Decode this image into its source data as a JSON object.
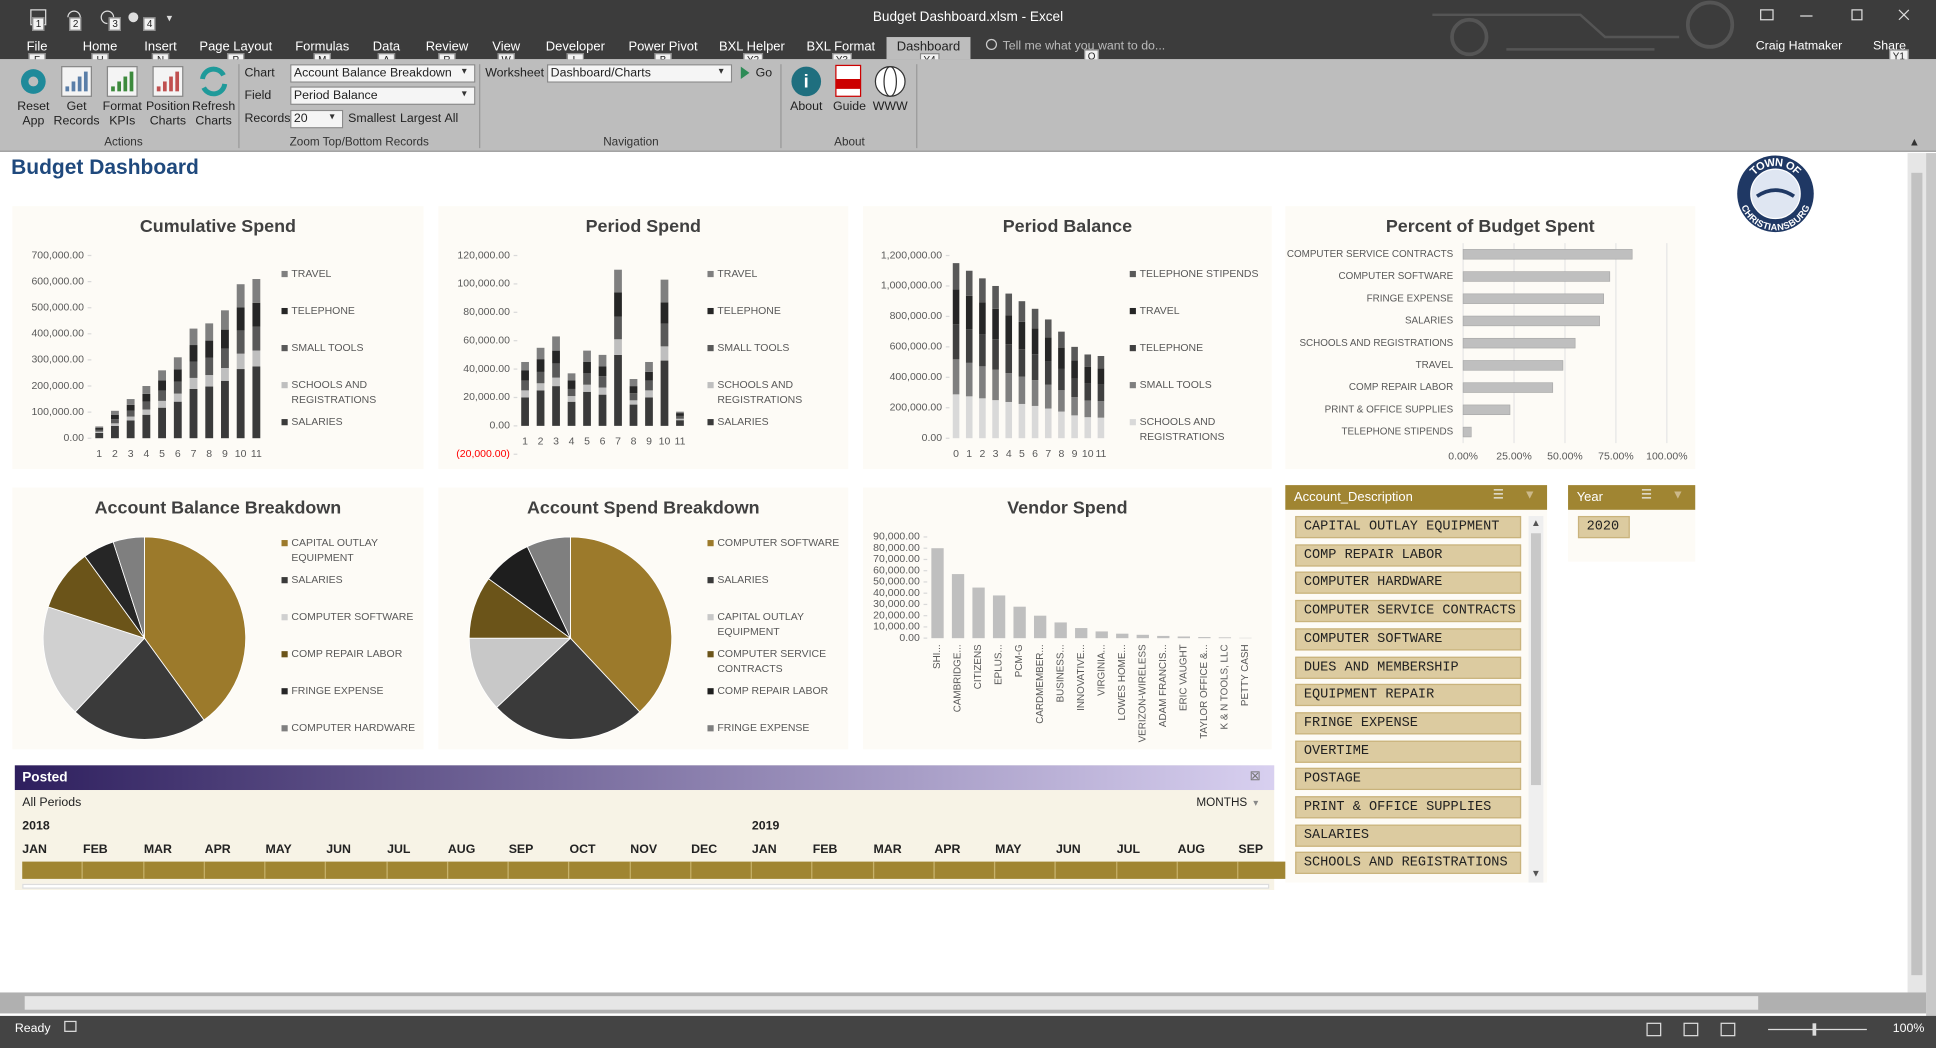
{
  "window": {
    "title": "Budget Dashboard.xlsm - Excel",
    "tell_me": "Tell me what you want to do...",
    "user": "Craig Hatmaker",
    "share": "Share",
    "qat_keytips": [
      "1",
      "2",
      "3",
      "4"
    ],
    "tell_me_keytip": "Q",
    "share_keytip": "Y1"
  },
  "tabs": [
    "File",
    "Home",
    "Insert",
    "Page Layout",
    "Formulas",
    "Data",
    "Review",
    "View",
    "Developer",
    "Power Pivot",
    "BXL Helper",
    "BXL Format",
    "Dashboard"
  ],
  "tab_keytips": [
    "F",
    "H",
    "N",
    "P",
    "M",
    "A",
    "R",
    "W",
    "L",
    "B",
    "Y2",
    "Y3",
    "Y4"
  ],
  "ribbon": {
    "actions": {
      "label": "Actions",
      "buttons": [
        "Reset App",
        "Get Records",
        "Format KPIs",
        "Position Charts",
        "Refresh Charts"
      ]
    },
    "zoom": {
      "label": "Zoom Top/Bottom Records",
      "chart_label": "Chart",
      "chart_value": "Account Balance Breakdown",
      "field_label": "Field",
      "field_value": "Period Balance",
      "records_label": "Records",
      "records_value": "20",
      "smallest": "Smallest",
      "largest": "Largest",
      "all": "All"
    },
    "navigation": {
      "label": "Navigation",
      "worksheet_label": "Worksheet",
      "worksheet_value": "Dashboard/Charts",
      "go": "Go"
    },
    "about": {
      "label": "About",
      "buttons": [
        "About",
        "Guide",
        "WWW"
      ]
    }
  },
  "sheet_title": "Budget Dashboard",
  "logo": {
    "top": "TOWN OF",
    "bottom": "CHRISTIANSBURG"
  },
  "chart_data": [
    {
      "type": "bar",
      "title": "Cumulative Spend",
      "categories": [
        "1",
        "2",
        "3",
        "4",
        "5",
        "6",
        "7",
        "8",
        "9",
        "10",
        "11"
      ],
      "series": [
        {
          "name": "SALARIES",
          "color": "#3a3a3a",
          "values": [
            20000,
            47000,
            68000,
            90000,
            117000,
            140000,
            189000,
            198000,
            220000,
            265000,
            275000
          ]
        },
        {
          "name": "SCHOOLS AND REGISTRATIONS",
          "color": "#bfbfbf",
          "values": [
            5000,
            10000,
            15000,
            20000,
            26000,
            31000,
            42000,
            44000,
            49000,
            59000,
            61000
          ]
        },
        {
          "name": "SMALL TOOLS",
          "color": "#595959",
          "values": [
            7000,
            16000,
            22000,
            30000,
            39000,
            46000,
            63000,
            66000,
            74000,
            89000,
            91000
          ]
        },
        {
          "name": "TELEPHONE",
          "color": "#262626",
          "values": [
            7000,
            16000,
            23000,
            30000,
            39000,
            47000,
            63000,
            66000,
            73000,
            88000,
            92000
          ]
        },
        {
          "name": "TRAVEL",
          "color": "#7f7f7f",
          "values": [
            6000,
            16000,
            22000,
            30000,
            39000,
            46000,
            63000,
            66000,
            74000,
            89000,
            91000
          ]
        }
      ],
      "ylim": [
        0,
        700000
      ],
      "yticks": [
        {
          "value": 0,
          "label": "0.00"
        },
        {
          "value": 100000,
          "label": "100,000.00"
        },
        {
          "value": 200000,
          "label": "200,000.00"
        },
        {
          "value": 300000,
          "label": "300,000.00"
        },
        {
          "value": 400000,
          "label": "400,000.00"
        },
        {
          "value": 500000,
          "label": "500,000.00"
        },
        {
          "value": 600000,
          "label": "600,000.00"
        },
        {
          "value": 700000,
          "label": "700,000.00"
        }
      ],
      "stacked": true,
      "legend": "right"
    },
    {
      "type": "bar",
      "title": "Period Spend",
      "categories": [
        "1",
        "2",
        "3",
        "4",
        "5",
        "6",
        "7",
        "8",
        "9",
        "10",
        "11"
      ],
      "series": [
        {
          "name": "SALARIES",
          "color": "#3a3a3a",
          "values": [
            20000,
            25000,
            28000,
            17000,
            24000,
            22000,
            50000,
            15000,
            20000,
            46000,
            4000
          ]
        },
        {
          "name": "SCHOOLS AND REGISTRATIONS",
          "color": "#bfbfbf",
          "values": [
            5000,
            5000,
            6000,
            4000,
            5000,
            5000,
            11000,
            3000,
            5000,
            10000,
            1000
          ]
        },
        {
          "name": "SMALL TOOLS",
          "color": "#595959",
          "values": [
            7000,
            8000,
            10000,
            5000,
            8000,
            8000,
            16000,
            5000,
            7000,
            16000,
            2000
          ]
        },
        {
          "name": "TELEPHONE",
          "color": "#262626",
          "values": [
            7000,
            9000,
            9000,
            6000,
            8000,
            7000,
            17000,
            5000,
            6000,
            15000,
            2000
          ]
        },
        {
          "name": "TRAVEL",
          "color": "#7f7f7f",
          "values": [
            6000,
            8000,
            10000,
            5000,
            8000,
            8000,
            16000,
            5000,
            7000,
            16000,
            1000
          ]
        }
      ],
      "ylim": [
        -20000,
        120000
      ],
      "yticks": [
        {
          "value": -20000,
          "label": "(20,000.00)"
        },
        {
          "value": 0,
          "label": "0.00"
        },
        {
          "value": 20000,
          "label": "20,000.00"
        },
        {
          "value": 40000,
          "label": "40,000.00"
        },
        {
          "value": 60000,
          "label": "60,000.00"
        },
        {
          "value": 80000,
          "label": "80,000.00"
        },
        {
          "value": 100000,
          "label": "100,000.00"
        },
        {
          "value": 120000,
          "label": "120,000.00"
        }
      ],
      "negative_tick_color": "#ff0000",
      "stacked": true,
      "legend": "right"
    },
    {
      "type": "bar",
      "title": "Period Balance",
      "categories": [
        "0",
        "1",
        "2",
        "3",
        "4",
        "5",
        "6",
        "7",
        "8",
        "9",
        "10",
        "11"
      ],
      "series": [
        {
          "name": "SCHOOLS AND REGISTRATIONS",
          "color": "#d9d9d9",
          "values": [
            288000,
            275000,
            262000,
            250000,
            238000,
            225000,
            212000,
            195000,
            175000,
            150000,
            138000,
            135000
          ]
        },
        {
          "name": "SMALL TOOLS",
          "color": "#7f7f7f",
          "values": [
            230000,
            220000,
            210000,
            200000,
            190000,
            180000,
            170000,
            156000,
            140000,
            120000,
            110000,
            108000
          ]
        },
        {
          "name": "TELEPHONE",
          "color": "#404040",
          "values": [
            230000,
            220000,
            210000,
            200000,
            190000,
            180000,
            170000,
            156000,
            140000,
            120000,
            110000,
            108000
          ]
        },
        {
          "name": "TRAVEL",
          "color": "#262626",
          "values": [
            230000,
            220000,
            210000,
            200000,
            190000,
            180000,
            170000,
            156000,
            140000,
            120000,
            110000,
            108000
          ]
        },
        {
          "name": "TELEPHONE STIPENDS",
          "color": "#595959",
          "values": [
            172000,
            165000,
            158000,
            150000,
            142000,
            135000,
            128000,
            117000,
            105000,
            90000,
            82000,
            81000
          ]
        }
      ],
      "ylim": [
        0,
        1200000
      ],
      "yticks": [
        {
          "value": 0,
          "label": "0.00"
        },
        {
          "value": 200000,
          "label": "200,000.00"
        },
        {
          "value": 400000,
          "label": "400,000.00"
        },
        {
          "value": 600000,
          "label": "600,000.00"
        },
        {
          "value": 800000,
          "label": "800,000.00"
        },
        {
          "value": 1000000,
          "label": "1,000,000.00"
        },
        {
          "value": 1200000,
          "label": "1,200,000.00"
        }
      ],
      "stacked": true,
      "legend": "right"
    },
    {
      "type": "barh",
      "title": "Percent of Budget Spent",
      "categories": [
        "COMPUTER SERVICE CONTRACTS",
        "COMPUTER SOFTWARE",
        "FRINGE EXPENSE",
        "SALARIES",
        "SCHOOLS AND REGISTRATIONS",
        "TRAVEL",
        "COMP REPAIR LABOR",
        "PRINT & OFFICE SUPPLIES",
        "TELEPHONE STIPENDS"
      ],
      "values": [
        83,
        72,
        69,
        67,
        55,
        49,
        44,
        23,
        4
      ],
      "color": "#bfbfbf",
      "xlim": [
        0,
        100
      ],
      "xticks": [
        {
          "value": 0,
          "label": "0.00%"
        },
        {
          "value": 25,
          "label": "25.00%"
        },
        {
          "value": 50,
          "label": "50.00%"
        },
        {
          "value": 75,
          "label": "75.00%"
        },
        {
          "value": 100,
          "label": "100.00%"
        }
      ],
      "grid": true
    },
    {
      "type": "pie",
      "title": "Account Balance Breakdown",
      "categories": [
        "CAPITAL OUTLAY EQUIPMENT",
        "SALARIES",
        "COMPUTER SOFTWARE",
        "COMP REPAIR LABOR",
        "FRINGE EXPENSE",
        "COMPUTER HARDWARE"
      ],
      "values": [
        40,
        22,
        18,
        10,
        5,
        5
      ],
      "colors": [
        "#9c7a2b",
        "#3a3a3a",
        "#d0d0d0",
        "#6b5419",
        "#262626",
        "#7f7f7f"
      ],
      "legend": "right"
    },
    {
      "type": "pie",
      "title": "Account Spend Breakdown",
      "categories": [
        "COMPUTER SOFTWARE",
        "SALARIES",
        "CAPITAL OUTLAY EQUIPMENT",
        "COMPUTER SERVICE CONTRACTS",
        "COMP REPAIR LABOR",
        "FRINGE EXPENSE"
      ],
      "values": [
        38,
        25,
        12,
        10,
        8,
        7
      ],
      "colors": [
        "#9c7a2b",
        "#3a3a3a",
        "#c8c8c8",
        "#6b5419",
        "#1e1e1e",
        "#7f7f7f"
      ],
      "legend": "right"
    },
    {
      "type": "bar",
      "title": "Vendor Spend",
      "categories": [
        "SHI...",
        "CAMBRIDGE...",
        "CITIZENS",
        "EPLUS...",
        "PCM-G",
        "CARDMEMBER...",
        "BUSINESS...",
        "INNOVATIVE...",
        "VIRGINIA...",
        "LOWES HOME...",
        "VERIZON-WIRELESS",
        "ADAM FRANCIS...",
        "ERIC VAUGHT",
        "TAYLOR OFFICE &...",
        "K & N TOOLS, LLC",
        "PETTY CASH"
      ],
      "values": [
        80000,
        57000,
        45000,
        38000,
        28000,
        20000,
        14000,
        9000,
        6000,
        4000,
        3000,
        2000,
        1500,
        1000,
        700,
        300
      ],
      "color": "#bfbfbf",
      "label_rotation": -90,
      "ylim": [
        0,
        90000
      ],
      "yticks": [
        {
          "value": 0,
          "label": "0.00"
        },
        {
          "value": 10000,
          "label": "10,000.00"
        },
        {
          "value": 20000,
          "label": "20,000.00"
        },
        {
          "value": 30000,
          "label": "30,000.00"
        },
        {
          "value": 40000,
          "label": "40,000.00"
        },
        {
          "value": 50000,
          "label": "50,000.00"
        },
        {
          "value": 60000,
          "label": "60,000.00"
        },
        {
          "value": 70000,
          "label": "70,000.00"
        },
        {
          "value": 80000,
          "label": "80,000.00"
        },
        {
          "value": 90000,
          "label": "90,000.00"
        }
      ]
    }
  ],
  "timeline": {
    "title": "Posted",
    "period": "All Periods",
    "level": "MONTHS",
    "years": [
      {
        "label": "2018",
        "month": 0
      },
      {
        "label": "2019",
        "month": 12
      }
    ],
    "months": [
      "JAN",
      "FEB",
      "MAR",
      "APR",
      "MAY",
      "JUN",
      "JUL",
      "AUG",
      "SEP",
      "OCT",
      "NOV",
      "DEC",
      "JAN",
      "FEB",
      "MAR",
      "APR",
      "MAY",
      "JUN",
      "JUL",
      "AUG",
      "SEP"
    ]
  },
  "slicers": [
    {
      "title": "Account_Description",
      "items": [
        "CAPITAL OUTLAY EQUIPMENT",
        "COMP REPAIR LABOR",
        "COMPUTER HARDWARE",
        "COMPUTER SERVICE CONTRACTS",
        "COMPUTER SOFTWARE",
        "DUES AND MEMBERSHIP",
        "EQUIPMENT REPAIR",
        "FRINGE EXPENSE",
        "OVERTIME",
        "POSTAGE",
        "PRINT & OFFICE SUPPLIES",
        "SALARIES",
        "SCHOOLS AND REGISTRATIONS"
      ]
    },
    {
      "title": "Year",
      "items": [
        "2020"
      ]
    }
  ],
  "status": {
    "ready": "Ready",
    "zoom": "100%"
  }
}
